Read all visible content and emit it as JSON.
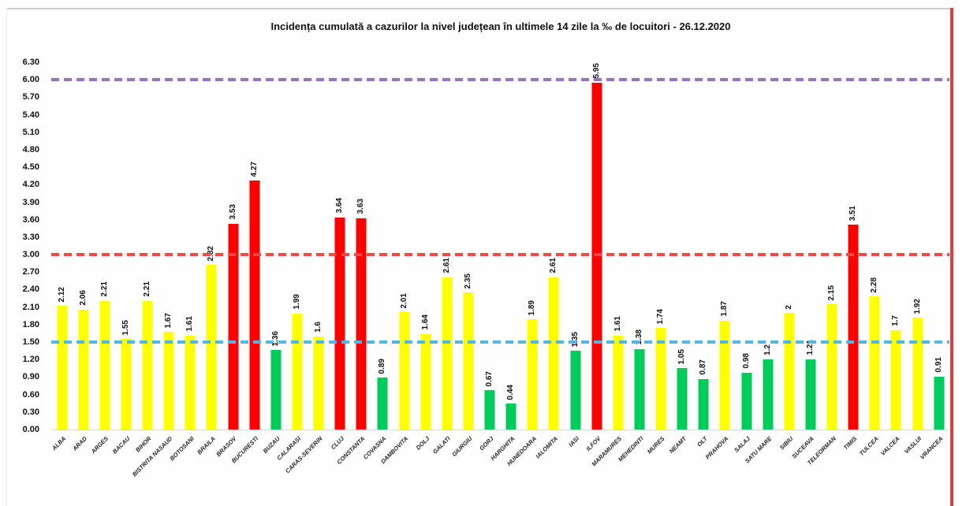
{
  "chart_data": {
    "type": "bar",
    "title": "Incidența cumulată a cazurilor la nivel județean în ultimele 14 zile la ‰ de locuitori - 26.12.2020",
    "xlabel": "",
    "ylabel": "",
    "ylim": [
      0,
      6.3
    ],
    "ytick_labels": [
      "6.30",
      "6.00",
      "5.70",
      "5.40",
      "5.10",
      "4.80",
      "4.50",
      "4.20",
      "3.90",
      "3.60",
      "3.30",
      "3.00",
      "2.70",
      "2.40",
      "2.10",
      "1.80",
      "1.50",
      "1.20",
      "0.90",
      "0.60",
      "0.30",
      "0.00"
    ],
    "grid": false,
    "legend": null,
    "categories": [
      "ALBA",
      "ARAD",
      "ARGES",
      "BACAU",
      "BIHOR",
      "BISTRITA NASAUD",
      "BOTOSANI",
      "BRAILA",
      "BRASOV",
      "BUCURESTI",
      "BUZAU",
      "CALARASI",
      "CARAS-SEVERIN",
      "CLUJ",
      "CONSTANTA",
      "COVASNA",
      "DAMBOVITA",
      "DOLJ",
      "GALATI",
      "GIURGIU",
      "GORJ",
      "HARGHITA",
      "HUNEDOARA",
      "IALOMITA",
      "IASI",
      "ILFOV",
      "MARAMURES",
      "MEHEDINTI",
      "MURES",
      "NEAMT",
      "OLT",
      "PRAHOVA",
      "SALAJ",
      "SATU MARE",
      "SIBIU",
      "SUCEAVA",
      "TELEORMAN",
      "TIMIS",
      "TULCEA",
      "VALCEA",
      "VASLUI",
      "VRANCEA"
    ],
    "values": [
      2.12,
      2.06,
      2.21,
      1.55,
      2.21,
      1.67,
      1.61,
      2.82,
      3.53,
      4.27,
      1.36,
      1.99,
      1.6,
      3.64,
      3.63,
      0.89,
      2.01,
      1.64,
      2.61,
      2.35,
      0.67,
      0.44,
      1.89,
      2.61,
      1.35,
      5.95,
      1.61,
      1.38,
      1.74,
      1.05,
      0.87,
      1.87,
      0.98,
      1.2,
      2,
      1.21,
      2.15,
      3.51,
      2.28,
      1.7,
      1.92,
      0.91
    ],
    "value_labels": [
      "2.12",
      "2.06",
      "2.21",
      "1.55",
      "2.21",
      "1.67",
      "1.61",
      "2.82",
      "3.53",
      "4.27",
      "1.36",
      "1.99",
      "1.6",
      "3.64",
      "3.63",
      "0.89",
      "2.01",
      "1.64",
      "2.61",
      "2.35",
      "0.67",
      "0.44",
      "1.89",
      "2.61",
      "1.35",
      "5.95",
      "1.61",
      "1.38",
      "1.74",
      "1.05",
      "0.87",
      "1.87",
      "0.98",
      "1.2",
      "2",
      "1.21",
      "2.15",
      "3.51",
      "2.28",
      "1.7",
      "1.92",
      "0.91"
    ],
    "bar_color_classes": [
      "yellow",
      "yellow",
      "yellow",
      "yellow",
      "yellow",
      "yellow",
      "yellow",
      "yellow",
      "red",
      "red",
      "green",
      "yellow",
      "yellow",
      "red",
      "red",
      "green",
      "yellow",
      "yellow",
      "yellow",
      "yellow",
      "green",
      "green",
      "yellow",
      "yellow",
      "green",
      "red",
      "yellow",
      "green",
      "yellow",
      "green",
      "green",
      "yellow",
      "green",
      "green",
      "yellow",
      "green",
      "yellow",
      "red",
      "yellow",
      "yellow",
      "yellow",
      "green"
    ],
    "bar_colors": {
      "yellow": "#ffff00",
      "red": "#fe0000",
      "green": "#00cc5c"
    },
    "threshold_lines": [
      {
        "name": "upper-limit-line",
        "value": 6.0,
        "color": "#9a6fc4",
        "style": "dashed"
      },
      {
        "name": "red-alert-line",
        "value": 3.0,
        "color": "#fb4545",
        "style": "dashed"
      },
      {
        "name": "yellow-alert-line",
        "value": 1.5,
        "color": "#4db7e5",
        "style": "dashed"
      }
    ]
  },
  "page": {
    "top_border_color": "#cfcfcf",
    "right_border_color": "#e23d3d",
    "background": "#fefefe"
  }
}
